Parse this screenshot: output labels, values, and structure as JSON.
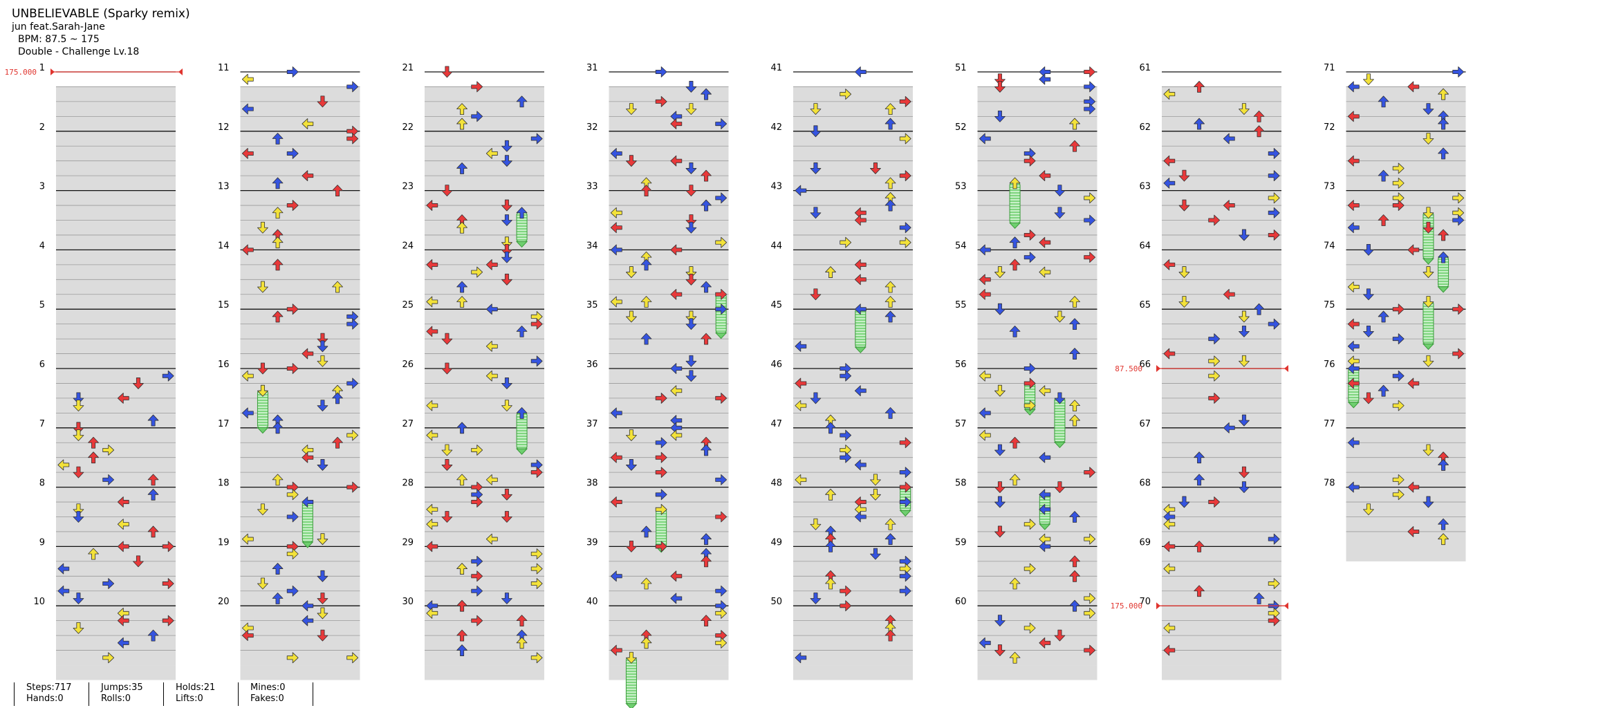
{
  "song": {
    "title": "UNBELIEVABLE (Sparky remix)",
    "artist": "jun feat.Sarah-Jane",
    "bpm": "BPM: 87.5 ~ 175",
    "difficulty": "Double - Challenge Lv.18"
  },
  "colors": {
    "red_arrow": "#e8393a",
    "blue_arrow": "#3554e0",
    "yellow_arrow": "#f3e23a",
    "hold_green": "#6fcf6f",
    "bpm_marker": "#e0352f",
    "lane_shade": "#dcdcdc"
  },
  "chart": {
    "total_measures": 78,
    "measures_per_column": 10,
    "bpm_changes": [
      {
        "measure": 1,
        "label": "175.000"
      },
      {
        "measure": 66,
        "label": "87.500"
      },
      {
        "measure": 70,
        "label": "175.000"
      }
    ]
  },
  "stats": {
    "groups": [
      {
        "a": "Steps:717",
        "b": "Hands:0"
      },
      {
        "a": "Jumps:35",
        "b": "Rolls:0"
      },
      {
        "a": "Holds:21",
        "b": "Lifts:0"
      },
      {
        "a": "Mines:0",
        "b": "Fakes:0"
      }
    ]
  }
}
